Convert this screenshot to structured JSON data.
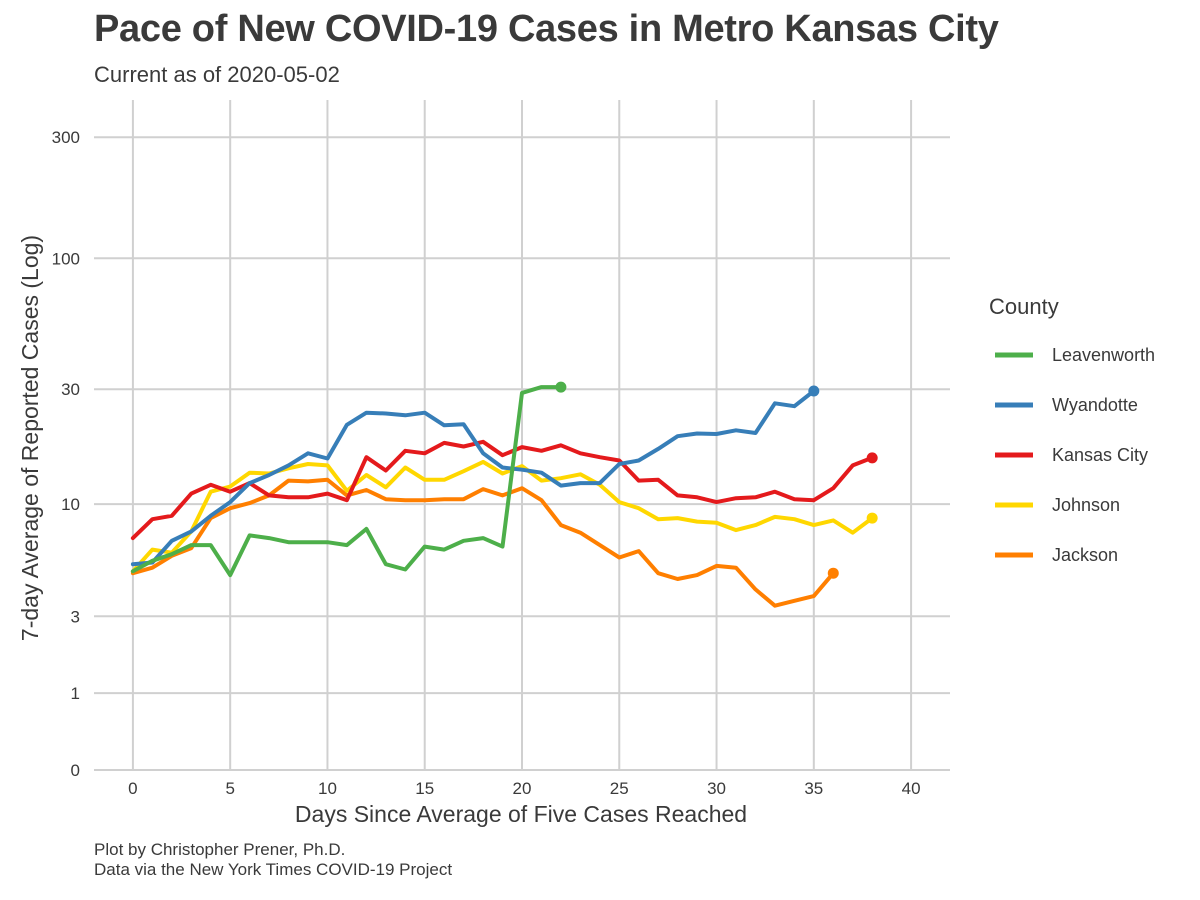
{
  "chart_data": {
    "type": "line",
    "title": "Pace of New COVID-19 Cases in Metro Kansas City",
    "subtitle": "Current as of 2020-05-02",
    "xlabel": "Days Since Average of Five Cases Reached",
    "ylabel": "7-day Average of Reported Cases (Log)",
    "y_scale": "log",
    "xlim": [
      -2,
      42
    ],
    "ylim": [
      0,
      420
    ],
    "x_ticks": [
      0,
      5,
      10,
      15,
      20,
      25,
      30,
      35,
      40
    ],
    "x_tick_labels": [
      "0",
      "5",
      "10",
      "15",
      "20",
      "25",
      "30",
      "35",
      "40"
    ],
    "y_ticks": [
      0,
      1,
      3,
      10,
      30,
      100,
      300
    ],
    "y_tick_labels": [
      "0",
      "1",
      "3",
      "10",
      "30",
      "100",
      "300"
    ],
    "grid": true,
    "legend_title": "County",
    "legend_position": "right",
    "series": [
      {
        "name": "Leavenworth",
        "color": "#4daf4a",
        "x": [
          0,
          1,
          2,
          3,
          4,
          5,
          6,
          7,
          8,
          9,
          10,
          11,
          12,
          13,
          14,
          15,
          16,
          17,
          18,
          19,
          20,
          21,
          22
        ],
        "y": [
          5.0,
          5.6,
          6.0,
          6.6,
          6.6,
          4.8,
          7.3,
          7.1,
          6.8,
          6.8,
          6.8,
          6.6,
          7.8,
          5.4,
          5.1,
          6.5,
          6.3,
          6.9,
          7.1,
          6.5,
          29,
          30.6,
          30.6
        ],
        "end_marker": true
      },
      {
        "name": "Wyandotte",
        "color": "#377eb8",
        "x": [
          0,
          1,
          2,
          3,
          4,
          5,
          6,
          7,
          8,
          9,
          10,
          11,
          12,
          13,
          14,
          15,
          16,
          17,
          18,
          19,
          20,
          21,
          22,
          23,
          24,
          25,
          26,
          27,
          28,
          29,
          30,
          31,
          32,
          33,
          34,
          35
        ],
        "y": [
          5.4,
          5.5,
          6.9,
          7.6,
          8.9,
          10.2,
          12.3,
          13.3,
          14.6,
          16.4,
          15.6,
          21.5,
          24.1,
          23.9,
          23.5,
          24.1,
          21.4,
          21.6,
          16.4,
          14.3,
          14.0,
          13.6,
          12.0,
          12.3,
          12.3,
          14.8,
          15.3,
          17.1,
          19.3,
          19.8,
          19.7,
          20.4,
          19.9,
          26.3,
          25.6,
          29.5
        ],
        "end_marker": true
      },
      {
        "name": "Kansas City",
        "color": "#e41a1c",
        "x": [
          0,
          1,
          2,
          3,
          4,
          5,
          6,
          7,
          8,
          9,
          10,
          11,
          12,
          13,
          14,
          15,
          16,
          17,
          18,
          19,
          20,
          21,
          22,
          23,
          24,
          25,
          26,
          27,
          28,
          29,
          30,
          31,
          32,
          33,
          34,
          35,
          36,
          37,
          38
        ],
        "y": [
          7.1,
          8.6,
          8.9,
          11.1,
          12.1,
          11.3,
          12.3,
          10.9,
          10.7,
          10.7,
          11.1,
          10.4,
          15.8,
          13.9,
          16.8,
          16.4,
          18.1,
          17.5,
          18.3,
          16.1,
          17.4,
          16.8,
          17.7,
          16.4,
          15.8,
          15.3,
          12.6,
          12.7,
          10.9,
          10.7,
          10.2,
          10.6,
          10.7,
          11.3,
          10.5,
          10.4,
          11.7,
          14.6,
          15.7
        ],
        "end_marker": true
      },
      {
        "name": "Johnson",
        "color": "#ffd700",
        "x": [
          0,
          1,
          2,
          3,
          4,
          5,
          6,
          7,
          8,
          9,
          10,
          11,
          12,
          13,
          14,
          15,
          16,
          17,
          18,
          19,
          20,
          21,
          22,
          23,
          24,
          25,
          26,
          27,
          28,
          29,
          30,
          31,
          32,
          33,
          34,
          35,
          36,
          37,
          38
        ],
        "y": [
          5.0,
          6.3,
          6.1,
          7.6,
          11.3,
          11.9,
          13.6,
          13.5,
          14.2,
          14.8,
          14.6,
          11.4,
          13.3,
          11.8,
          14.3,
          12.7,
          12.7,
          13.8,
          15.1,
          13.5,
          14.5,
          12.6,
          12.9,
          13.4,
          12.1,
          10.2,
          9.6,
          8.6,
          8.7,
          8.4,
          8.3,
          7.7,
          8.1,
          8.8,
          8.6,
          8.1,
          8.5,
          7.5,
          8.7
        ],
        "end_marker": true
      },
      {
        "name": "Jackson",
        "color": "#ff7f00",
        "x": [
          0,
          1,
          2,
          3,
          4,
          5,
          6,
          7,
          8,
          9,
          10,
          11,
          12,
          13,
          14,
          15,
          16,
          17,
          18,
          19,
          20,
          21,
          22,
          23,
          24,
          25,
          26,
          27,
          28,
          29,
          30,
          31,
          32,
          33,
          34,
          35,
          36
        ],
        "y": [
          4.9,
          5.2,
          5.9,
          6.4,
          8.7,
          9.6,
          10.1,
          10.9,
          12.6,
          12.5,
          12.7,
          10.9,
          11.5,
          10.5,
          10.4,
          10.4,
          10.5,
          10.5,
          11.6,
          10.9,
          11.7,
          10.4,
          8.1,
          7.5,
          6.6,
          5.8,
          6.2,
          4.9,
          4.6,
          4.8,
          5.3,
          5.2,
          4.1,
          3.4,
          3.6,
          3.8,
          4.9
        ],
        "end_marker": true
      }
    ]
  },
  "caption": {
    "line1": "Plot by Christopher Prener, Ph.D.",
    "line2": "Data via the New York Times COVID-19 Project"
  }
}
